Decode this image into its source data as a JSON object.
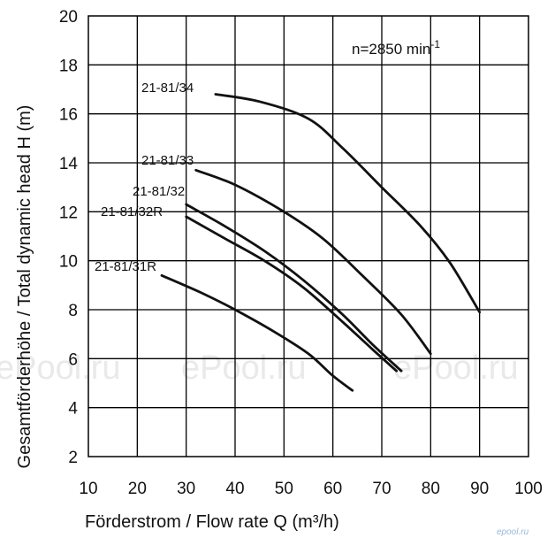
{
  "chart_data": {
    "type": "line",
    "xlabel": "Förderstrom / Flow rate Q (m³/h)",
    "ylabel": "Gesamtförderhöhe / Total dynamic head H (m)",
    "xlim": [
      10,
      100
    ],
    "ylim": [
      2,
      20
    ],
    "xticks": [
      "10",
      "20",
      "30",
      "40",
      "50",
      "60",
      "70",
      "80",
      "90",
      "100"
    ],
    "yticks": [
      "2",
      "4",
      "6",
      "8",
      "10",
      "12",
      "14",
      "16",
      "18",
      "20"
    ],
    "grid": true,
    "annotation": {
      "prefix": "n=2850 min",
      "superscript": "-1"
    },
    "series": [
      {
        "name": "21-81/34",
        "x": [
          36,
          45,
          55,
          62,
          70,
          78,
          84,
          90
        ],
        "y": [
          16.8,
          16.5,
          15.8,
          14.6,
          13.0,
          11.4,
          9.9,
          7.9
        ]
      },
      {
        "name": "21-81/33",
        "x": [
          32,
          40,
          50,
          58,
          66,
          74,
          80
        ],
        "y": [
          13.7,
          13.1,
          12.0,
          10.9,
          9.4,
          7.8,
          6.2
        ]
      },
      {
        "name": "21-81/32",
        "x": [
          30,
          38,
          46,
          54,
          62,
          68,
          74
        ],
        "y": [
          12.3,
          11.4,
          10.4,
          9.2,
          7.8,
          6.6,
          5.5
        ]
      },
      {
        "name": "21-81/32R",
        "x": [
          30,
          38,
          46,
          54,
          62,
          68,
          73
        ],
        "y": [
          11.8,
          10.9,
          10.0,
          8.9,
          7.5,
          6.4,
          5.5
        ]
      },
      {
        "name": "21-81/31R",
        "x": [
          25,
          33,
          40,
          48,
          55,
          60,
          64
        ],
        "y": [
          9.4,
          8.7,
          8.0,
          7.1,
          6.2,
          5.3,
          4.7
        ]
      }
    ],
    "curve_labels": [
      {
        "text": "21-81/34"
      },
      {
        "text": "21-81/33"
      },
      {
        "text": "21-81/32"
      },
      {
        "text": "21-81/32R"
      },
      {
        "text": "21-81/31R"
      }
    ],
    "watermark": {
      "big_1": "ePool.ru",
      "big_2": "ePool.ru",
      "big_3": "ePool.ru",
      "small": "epool.ru"
    }
  }
}
